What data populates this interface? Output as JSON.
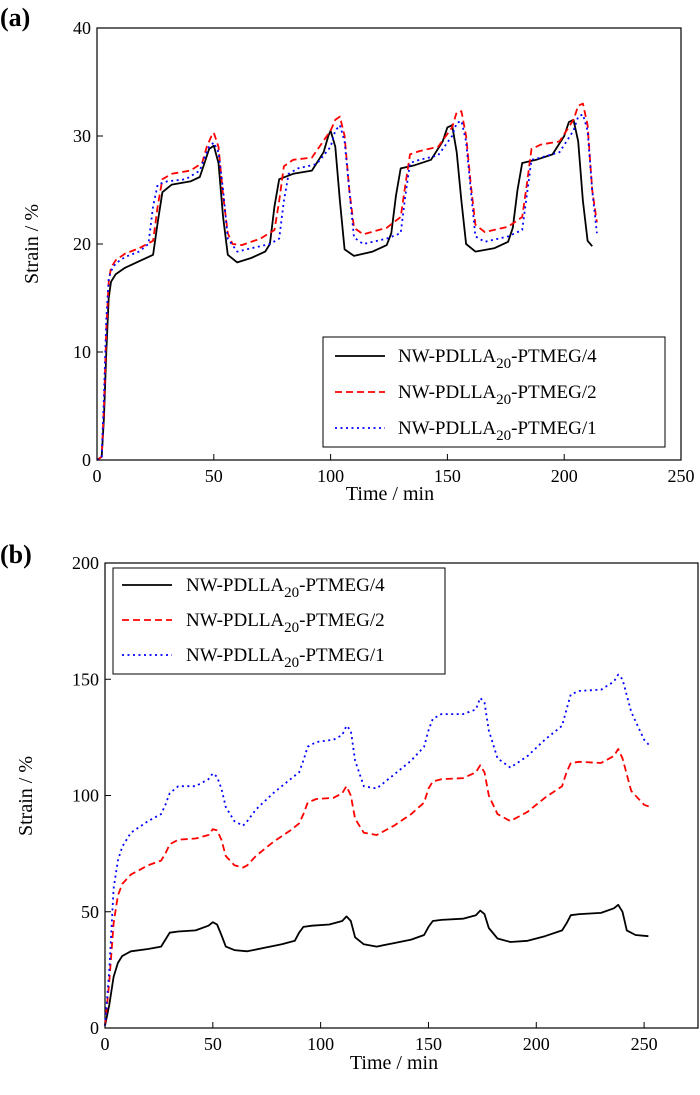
{
  "chart_data": [
    {
      "panel_label": "(a)",
      "type": "line",
      "xlabel": "Time / min",
      "ylabel": "Strain / %",
      "xlim": [
        0,
        250
      ],
      "ylim": [
        0,
        40
      ],
      "xticks": [
        0,
        50,
        100,
        150,
        200,
        250
      ],
      "yticks": [
        0,
        10,
        20,
        30,
        40
      ],
      "legend_position": "lower-right",
      "series": [
        {
          "name": "NW-PDLLA20-PTMEG/4",
          "name_parts": [
            "NW-PDLLA",
            "20",
            "-PTMEG/4"
          ],
          "color": "#000000",
          "dash": "solid",
          "x": [
            0,
            2,
            3,
            4,
            5,
            6,
            8,
            12,
            18,
            24,
            26,
            28,
            32,
            40,
            44,
            46,
            48,
            50,
            52,
            54,
            56,
            60,
            66,
            72,
            74,
            76,
            78,
            84,
            92,
            97,
            99,
            100,
            102,
            104,
            106,
            110,
            118,
            124,
            126,
            128,
            130,
            136,
            143,
            148,
            150,
            152,
            154,
            156,
            158,
            162,
            170,
            176,
            178,
            180,
            182,
            188,
            195,
            200,
            202,
            204,
            206,
            208,
            210,
            212
          ],
          "y": [
            0,
            0.3,
            4,
            10,
            15,
            16.5,
            17.2,
            17.8,
            18.4,
            19.0,
            22,
            24.8,
            25.5,
            25.8,
            26.2,
            27.5,
            28.8,
            29.1,
            27.5,
            22.5,
            19.0,
            18.3,
            18.7,
            19.3,
            20.0,
            23.5,
            26.0,
            26.5,
            26.8,
            28.5,
            30.0,
            30.5,
            29.0,
            24.0,
            19.5,
            18.9,
            19.3,
            19.9,
            21.0,
            24.5,
            27.0,
            27.3,
            27.8,
            29.5,
            30.8,
            31.0,
            28.5,
            24.0,
            20.0,
            19.3,
            19.6,
            20.2,
            21.5,
            25.0,
            27.5,
            27.8,
            28.3,
            30.0,
            31.3,
            31.5,
            29.5,
            24.0,
            20.3,
            19.8
          ]
        },
        {
          "name": "NW-PDLLA20-PTMEG/2",
          "name_parts": [
            "NW-PDLLA",
            "20",
            "-PTMEG/2"
          ],
          "color": "#ff0000",
          "dash": "dashed",
          "x": [
            0,
            2,
            3,
            4,
            5,
            6,
            8,
            12,
            18,
            24,
            26,
            28,
            32,
            40,
            45,
            47,
            49,
            50,
            52,
            54,
            56,
            58,
            62,
            70,
            76,
            78,
            80,
            84,
            92,
            100,
            102,
            104,
            106,
            108,
            110,
            114,
            124,
            130,
            132,
            134,
            138,
            146,
            152,
            154,
            156,
            158,
            160,
            162,
            166,
            176,
            182,
            184,
            186,
            190,
            198,
            204,
            206,
            208,
            210,
            212,
            214
          ],
          "y": [
            0,
            0.3,
            5,
            12,
            16.5,
            17.8,
            18.5,
            19.1,
            19.6,
            20.3,
            23.5,
            26.0,
            26.5,
            26.8,
            27.5,
            29.0,
            30.0,
            30.3,
            29.0,
            24.5,
            21.0,
            20.0,
            19.9,
            20.5,
            21.3,
            24.0,
            27.2,
            27.8,
            28.0,
            30.5,
            31.5,
            31.8,
            30.0,
            25.0,
            21.5,
            20.9,
            21.5,
            22.5,
            25.5,
            28.3,
            28.6,
            29.0,
            30.8,
            32.2,
            32.3,
            30.0,
            25.5,
            21.8,
            21.1,
            21.6,
            22.5,
            25.5,
            28.8,
            29.2,
            29.5,
            31.5,
            32.8,
            33.0,
            31.0,
            25.0,
            22.0
          ]
        },
        {
          "name": "NW-PDLLA20-PTMEG/1",
          "name_parts": [
            "NW-PDLLA",
            "20",
            "-PTMEG/1"
          ],
          "color": "#0000ff",
          "dash": "dotted",
          "x": [
            0,
            2,
            3,
            4,
            5,
            6,
            8,
            12,
            18,
            22,
            24,
            26,
            30,
            38,
            44,
            46,
            48,
            50,
            52,
            54,
            56,
            60,
            66,
            74,
            78,
            80,
            82,
            86,
            94,
            100,
            102,
            104,
            106,
            108,
            110,
            114,
            124,
            130,
            132,
            134,
            138,
            146,
            152,
            154,
            156,
            158,
            160,
            162,
            166,
            176,
            182,
            184,
            186,
            190,
            198,
            204,
            206,
            208,
            210,
            212,
            214
          ],
          "y": [
            0,
            0.3,
            6,
            13,
            16.8,
            17.5,
            18.2,
            18.8,
            19.3,
            20.0,
            23.5,
            25.5,
            25.8,
            26.0,
            26.8,
            28.0,
            29.0,
            29.4,
            28.5,
            25.0,
            20.5,
            19.3,
            19.6,
            20.0,
            20.5,
            24.0,
            26.5,
            27.0,
            27.4,
            29.0,
            30.5,
            31.0,
            29.5,
            25.0,
            20.6,
            20.0,
            20.5,
            21.0,
            24.5,
            27.5,
            27.8,
            28.2,
            30.0,
            31.2,
            31.4,
            29.5,
            25.0,
            20.7,
            20.2,
            20.7,
            21.3,
            24.5,
            27.8,
            28.0,
            28.5,
            30.5,
            31.8,
            32.0,
            30.5,
            25.0,
            21.0
          ]
        }
      ]
    },
    {
      "panel_label": "(b)",
      "type": "line",
      "xlabel": "Time / min",
      "ylabel": "Strain / %",
      "xlim": [
        0,
        275
      ],
      "ylim": [
        0,
        200
      ],
      "xticks": [
        0,
        50,
        100,
        150,
        200,
        250
      ],
      "yticks": [
        0,
        50,
        100,
        150,
        200
      ],
      "legend_position": "top-left",
      "series": [
        {
          "name": "NW-PDLLA20-PTMEG/4",
          "name_parts": [
            "NW-PDLLA",
            "20",
            "-PTMEG/4"
          ],
          "color": "#000000",
          "dash": "solid",
          "x": [
            0,
            2,
            4,
            6,
            8,
            12,
            20,
            26,
            28,
            30,
            34,
            42,
            48,
            50,
            52,
            54,
            56,
            60,
            66,
            74,
            82,
            88,
            90,
            92,
            96,
            104,
            110,
            112,
            114,
            116,
            120,
            126,
            134,
            142,
            148,
            150,
            152,
            156,
            166,
            172,
            174,
            176,
            178,
            182,
            188,
            196,
            204,
            212,
            214,
            216,
            220,
            230,
            236,
            238,
            240,
            242,
            246,
            252
          ],
          "y": [
            1,
            10,
            22,
            28,
            31,
            33,
            34,
            35,
            38,
            41,
            41.5,
            42,
            44,
            45.5,
            44.5,
            40,
            35,
            33.5,
            33,
            34.5,
            36,
            37.5,
            41,
            43.5,
            44,
            44.5,
            46,
            48,
            46,
            39,
            36,
            35,
            36.5,
            38,
            40,
            43.5,
            46,
            46.5,
            47,
            48.5,
            50.5,
            49,
            43,
            38.5,
            37,
            37.5,
            39.5,
            42,
            45,
            48.5,
            49,
            49.5,
            51.5,
            53,
            50,
            42,
            40,
            39.5
          ]
        },
        {
          "name": "NW-PDLLA20-PTMEG/2",
          "name_parts": [
            "NW-PDLLA",
            "20",
            "-PTMEG/2"
          ],
          "color": "#ff0000",
          "dash": "dashed",
          "x": [
            0,
            2,
            4,
            6,
            8,
            12,
            20,
            26,
            28,
            30,
            34,
            42,
            48,
            50,
            52,
            54,
            56,
            60,
            64,
            66,
            70,
            78,
            86,
            90,
            92,
            94,
            98,
            106,
            110,
            112,
            114,
            116,
            120,
            126,
            134,
            142,
            148,
            150,
            152,
            156,
            166,
            172,
            174,
            176,
            178,
            182,
            188,
            196,
            204,
            212,
            214,
            216,
            220,
            230,
            236,
            238,
            240,
            244,
            250,
            253
          ],
          "y": [
            1,
            20,
            45,
            57,
            62,
            66,
            70,
            72,
            75,
            79,
            81,
            81.5,
            83,
            85.5,
            85,
            81,
            74,
            70,
            69,
            70,
            74,
            80,
            85,
            88,
            92,
            97,
            98.5,
            99,
            101,
            104,
            100,
            90,
            84,
            83,
            87,
            92,
            97,
            103,
            106,
            107,
            107.5,
            110,
            113,
            110,
            100,
            92,
            89,
            93,
            99,
            104,
            110,
            114,
            114.5,
            114,
            117,
            120,
            116,
            102,
            96,
            95
          ]
        },
        {
          "name": "NW-PDLLA20-PTMEG/1",
          "name_parts": [
            "NW-PDLLA",
            "20",
            "-PTMEG/1"
          ],
          "color": "#0000ff",
          "dash": "dotted",
          "x": [
            0,
            2,
            4,
            6,
            8,
            12,
            20,
            26,
            28,
            30,
            34,
            42,
            48,
            50,
            52,
            54,
            56,
            60,
            64,
            66,
            70,
            78,
            86,
            90,
            92,
            94,
            98,
            106,
            110,
            112,
            114,
            116,
            120,
            126,
            134,
            142,
            148,
            150,
            152,
            156,
            166,
            172,
            174,
            176,
            178,
            182,
            188,
            196,
            204,
            212,
            214,
            216,
            220,
            230,
            236,
            238,
            240,
            244,
            250,
            253
          ],
          "y": [
            1,
            25,
            60,
            72,
            78,
            84,
            89,
            92,
            96,
            101,
            104,
            104,
            107,
            109.5,
            108,
            103,
            95,
            89,
            87,
            89,
            94,
            101,
            107,
            110,
            115,
            121,
            123,
            124,
            126,
            130,
            128,
            115,
            104,
            103,
            109,
            115,
            121,
            128,
            133,
            135,
            135,
            137,
            142,
            140,
            128,
            116,
            112,
            117,
            124,
            130,
            137,
            143.5,
            145,
            145.5,
            149,
            152,
            150,
            136,
            124,
            121
          ]
        }
      ]
    }
  ]
}
